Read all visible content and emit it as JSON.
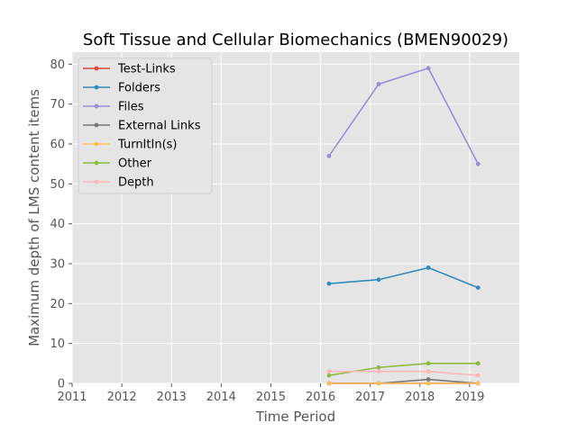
{
  "chart_data": {
    "type": "line",
    "title": "Soft Tissue and Cellular Biomechanics (BMEN90029)",
    "xlabel": "Time Period",
    "ylabel": "Maximum depth of LMS content items",
    "xlim": [
      2011,
      2020
    ],
    "ylim": [
      0,
      83
    ],
    "xticks": [
      2011,
      2012,
      2013,
      2014,
      2015,
      2016,
      2017,
      2018,
      2019
    ],
    "yticks": [
      0,
      10,
      20,
      30,
      40,
      50,
      60,
      70,
      80
    ],
    "grid": true,
    "legend_position": "upper-left",
    "x": [
      2016.17,
      2017.17,
      2018.17,
      2019.17
    ],
    "series": [
      {
        "name": "Test-Links",
        "color": "#E24A33",
        "values": [
          0,
          0,
          0,
          0
        ]
      },
      {
        "name": "Folders",
        "color": "#348ABD",
        "values": [
          25,
          26,
          29,
          24
        ]
      },
      {
        "name": "Files",
        "color": "#988ED5",
        "values": [
          57,
          75,
          79,
          55
        ]
      },
      {
        "name": "External Links",
        "color": "#777777",
        "values": [
          0,
          0,
          1,
          0
        ]
      },
      {
        "name": "TurnItIn(s)",
        "color": "#FBC15E",
        "values": [
          0,
          0,
          0,
          0
        ]
      },
      {
        "name": "Other",
        "color": "#8EBA42",
        "values": [
          2,
          4,
          5,
          5
        ]
      },
      {
        "name": "Depth",
        "color": "#FFB5B8",
        "values": [
          3,
          3,
          3,
          2
        ]
      }
    ]
  }
}
